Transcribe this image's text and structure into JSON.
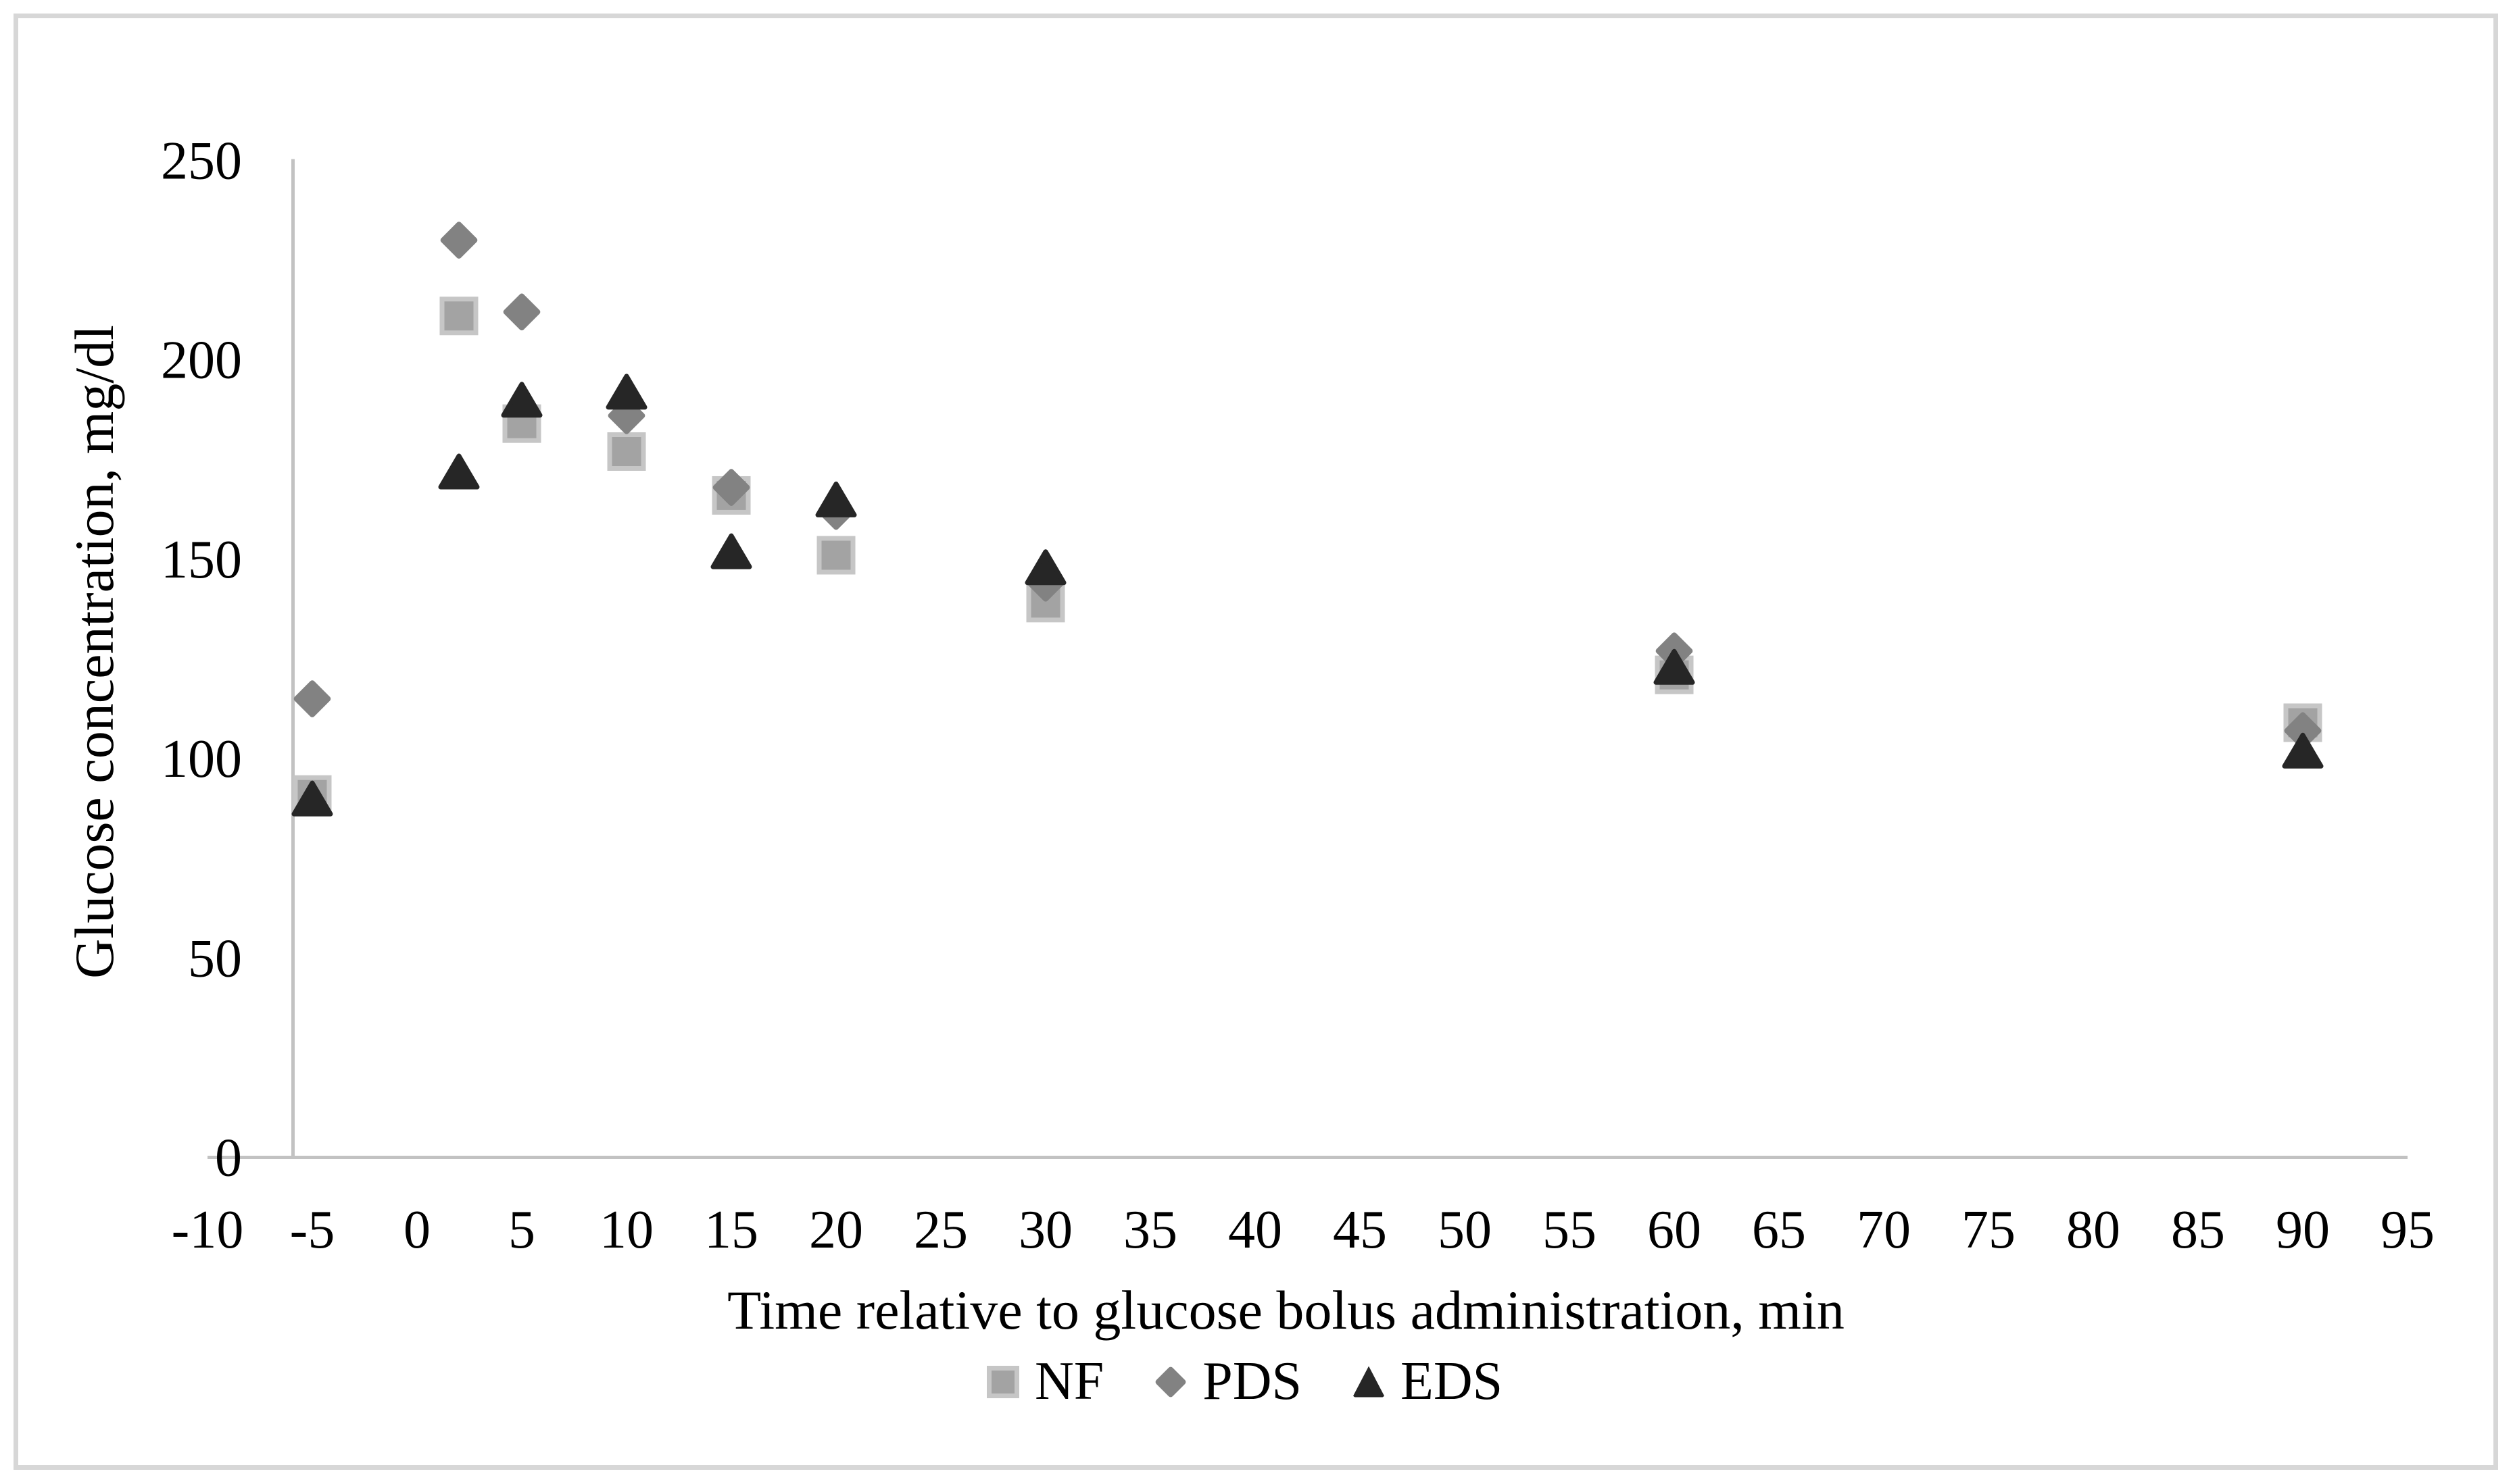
{
  "figure": {
    "background": "#ffffff",
    "frame_color": "#d7d7d7"
  },
  "chart_data": {
    "type": "scatter",
    "title": "",
    "xlabel": "Time relative to glucose bolus administration, min",
    "ylabel": "Glucose concentration, mg/dl",
    "xlim": [
      -10,
      95
    ],
    "ylim": [
      0,
      250
    ],
    "x_ticks": [
      -10,
      -5,
      0,
      5,
      10,
      15,
      20,
      25,
      30,
      35,
      40,
      45,
      50,
      55,
      60,
      65,
      70,
      75,
      80,
      85,
      90,
      95
    ],
    "y_ticks": [
      0,
      50,
      100,
      150,
      200,
      250
    ],
    "grid": false,
    "legend_position": "bottom",
    "axis_color": "#c2c2c2",
    "x": [
      -5,
      2,
      5,
      10,
      15,
      20,
      30,
      60,
      90
    ],
    "series": [
      {
        "name": "NF",
        "marker": "square",
        "color": "#a3a3a3",
        "border_color": "#c6c6c6",
        "values": [
          91,
          211,
          184,
          177,
          166,
          151,
          139,
          121,
          109
        ]
      },
      {
        "name": "PDS",
        "marker": "diamond",
        "color": "#828282",
        "values": [
          115,
          230,
          212,
          186,
          168,
          162,
          144,
          127,
          107
        ]
      },
      {
        "name": "EDS",
        "marker": "triangle",
        "color": "#262626",
        "values": [
          90,
          172,
          190,
          192,
          152,
          165,
          148,
          123,
          102
        ]
      }
    ]
  }
}
